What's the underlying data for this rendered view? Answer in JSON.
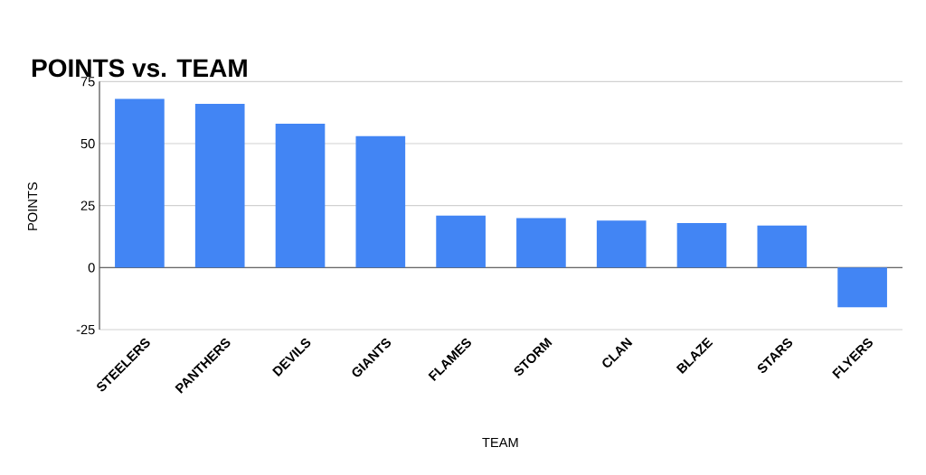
{
  "chart_data": {
    "type": "bar",
    "title": "POINTS vs. TEAM",
    "xlabel": "TEAM",
    "ylabel": "POINTS",
    "categories": [
      "STEELERS",
      "PANTHERS",
      "DEVILS",
      "GIANTS",
      "FLAMES",
      "STORM",
      "CLAN",
      "BLAZE",
      "STARS",
      "FLYERS"
    ],
    "values": [
      68,
      66,
      58,
      53,
      21,
      20,
      19,
      18,
      17,
      -16
    ],
    "color": "#4285f4",
    "ylim": [
      -25,
      75
    ],
    "yticks": [
      -25,
      0,
      25,
      50,
      75
    ],
    "grid": "y"
  }
}
